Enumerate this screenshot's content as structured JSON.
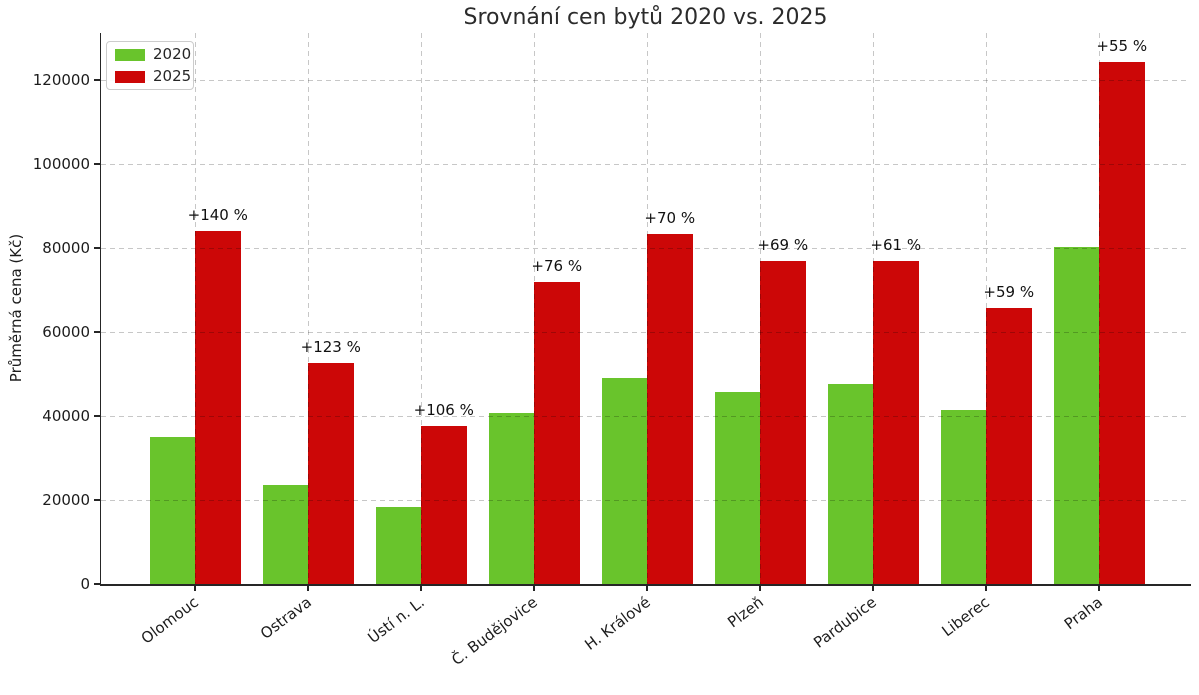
{
  "chart": {
    "title": "Srovnání cen bytů 2020 vs. 2025",
    "ylabel": "Průměrná cena (Kč)"
  },
  "chart_data": {
    "type": "bar",
    "title": "Srovnání cen bytů 2020 vs. 2025",
    "xlabel": "",
    "ylabel": "Průměrná cena (Kč)",
    "categories": [
      "Olomouc",
      "Ostrava",
      "Ústí n. L.",
      "Č. Budějovice",
      "H. Králové",
      "Plzeň",
      "Pardubice",
      "Liberec",
      "Praha"
    ],
    "series": [
      {
        "name": "2020",
        "color": "#69c42c",
        "values": [
          35000,
          23600,
          18300,
          40800,
          49000,
          45600,
          47700,
          41400,
          80200
        ]
      },
      {
        "name": "2025",
        "color": "#cc0707",
        "values": [
          84000,
          52700,
          37600,
          71800,
          83300,
          77000,
          76800,
          65800,
          124300
        ]
      }
    ],
    "bar_labels": {
      "series": "2025",
      "values": [
        "+140 %",
        "+123 %",
        "+106 %",
        "+76 %",
        "+70 %",
        "+69 %",
        "+61 %",
        "+59 %",
        "+55 %"
      ]
    },
    "yticks": [
      0,
      20000,
      40000,
      60000,
      80000,
      100000,
      120000
    ],
    "ylim": [
      0,
      131200
    ],
    "grid": {
      "show": true,
      "style": "dashed",
      "axes": "both",
      "above_bars": true
    },
    "legend": {
      "position": "upper-left",
      "items": [
        "2020",
        "2025"
      ]
    }
  }
}
